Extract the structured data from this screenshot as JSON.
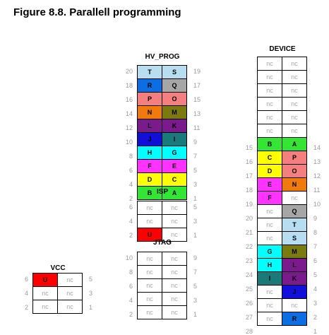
{
  "title": "Figure 8.8. Parallell programming",
  "colors": {
    "T": "#b7ddf1",
    "S": "#b7ddf1",
    "R": "#0b6fe3",
    "Q": "#a6a6a6",
    "P": "#f47f7e",
    "O": "#f47f7e",
    "N": "#f07a0c",
    "M": "#7a7a10",
    "L": "#7b1a8d",
    "K": "#7b1a8d",
    "J": "#1010d8",
    "I": "#1a7a7a",
    "H": "#00ffff",
    "G": "#00ffff",
    "F": "#ff33ff",
    "E": "#ff33ff",
    "D": "#ffff00",
    "C": "#ffff00",
    "B": "#33e633",
    "A": "#33e633",
    "U": "#ff0000",
    "nc": "#ffffff"
  },
  "blocks": [
    {
      "id": "hv-prog",
      "header": "HV_PROG",
      "rows": [
        {
          "ln": "20",
          "a": "T",
          "b": "S",
          "rn": "19"
        },
        {
          "ln": "18",
          "a": "R",
          "b": "Q",
          "rn": "17"
        },
        {
          "ln": "16",
          "a": "P",
          "b": "O",
          "rn": "15"
        },
        {
          "ln": "14",
          "a": "N",
          "b": "M",
          "rn": "13"
        },
        {
          "ln": "12",
          "a": "L",
          "b": "K",
          "rn": "11"
        },
        {
          "ln": "10",
          "a": "J",
          "b": "I",
          "rn": "9"
        },
        {
          "ln": "8",
          "a": "H",
          "b": "G",
          "rn": "7"
        },
        {
          "ln": "6",
          "a": "F",
          "b": "E",
          "rn": "5"
        },
        {
          "ln": "4",
          "a": "D",
          "b": "C",
          "rn": "3"
        },
        {
          "ln": "2",
          "a": "B",
          "b": "A",
          "rn": "1"
        }
      ]
    },
    {
      "id": "isp",
      "header": "ISP",
      "rows": [
        {
          "ln": "6",
          "a": "nc",
          "b": "nc",
          "rn": "5"
        },
        {
          "ln": "4",
          "a": "nc",
          "b": "nc",
          "rn": "3"
        },
        {
          "ln": "2",
          "a": "U",
          "b": "nc",
          "rn": "1"
        }
      ]
    },
    {
      "id": "jtag",
      "header": "JTAG",
      "rows": [
        {
          "ln": "10",
          "a": "nc",
          "b": "nc",
          "rn": "9"
        },
        {
          "ln": "8",
          "a": "nc",
          "b": "nc",
          "rn": "7"
        },
        {
          "ln": "6",
          "a": "nc",
          "b": "nc",
          "rn": "5"
        },
        {
          "ln": "4",
          "a": "nc",
          "b": "nc",
          "rn": "3"
        },
        {
          "ln": "2",
          "a": "nc",
          "b": "nc",
          "rn": "1"
        }
      ]
    },
    {
      "id": "vcc",
      "header": "VCC",
      "rows": [
        {
          "ln": "6",
          "a": "U",
          "b": "nc",
          "rn": "5"
        },
        {
          "ln": "4",
          "a": "nc",
          "b": "nc",
          "rn": "3"
        },
        {
          "ln": "2",
          "a": "nc",
          "b": "nc",
          "rn": "1"
        }
      ]
    },
    {
      "id": "device",
      "header": "DEVICE",
      "rows": [
        {
          "ln": "",
          "a": "nc",
          "b": "nc",
          "rn": ""
        },
        {
          "ln": "",
          "a": "nc",
          "b": "nc",
          "rn": ""
        },
        {
          "ln": "",
          "a": "nc",
          "b": "nc",
          "rn": ""
        },
        {
          "ln": "",
          "a": "nc",
          "b": "nc",
          "rn": ""
        },
        {
          "ln": "",
          "a": "nc",
          "b": "nc",
          "rn": ""
        },
        {
          "ln": "",
          "a": "nc",
          "b": "nc",
          "rn": ""
        },
        {
          "ln": "15",
          "a": "B",
          "b": "A",
          "rn": "14"
        },
        {
          "ln": "16",
          "a": "C",
          "b": "P",
          "rn": "13"
        },
        {
          "ln": "17",
          "a": "D",
          "b": "O",
          "rn": "12"
        },
        {
          "ln": "18",
          "a": "E",
          "b": "N",
          "rn": "11"
        },
        {
          "ln": "19",
          "a": "F",
          "b": "nc",
          "rn": "10"
        },
        {
          "ln": "20",
          "a": "nc",
          "b": "Q",
          "rn": "9"
        },
        {
          "ln": "21",
          "a": "nc",
          "b": "T",
          "rn": "8"
        },
        {
          "ln": "22",
          "a": "nc",
          "b": "S",
          "rn": "7"
        },
        {
          "ln": "23",
          "a": "G",
          "b": "M",
          "rn": "6"
        },
        {
          "ln": "24",
          "a": "H",
          "b": "L",
          "rn": "5"
        },
        {
          "ln": "25",
          "a": "I",
          "b": "K",
          "rn": "4"
        },
        {
          "ln": "26",
          "a": "nc",
          "b": "J",
          "rn": "3"
        },
        {
          "ln": "27",
          "a": "nc",
          "b": "nc",
          "rn": "2"
        },
        {
          "ln": "28",
          "a": "nc",
          "b": "R",
          "rn": "1"
        }
      ]
    }
  ]
}
